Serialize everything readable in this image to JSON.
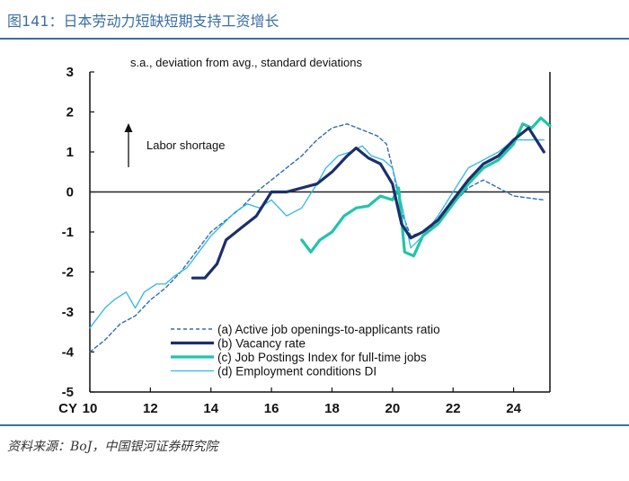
{
  "page": {
    "title": "图141：日本劳动力短缺短期支持工资增长",
    "source": "资料来源：BoJ，中国银河证券研究院"
  },
  "chart_data": {
    "type": "line",
    "subtitle": "s.a., deviation from avg., standard deviations",
    "annotation": "Labor shortage",
    "x_prefix": "CY",
    "xlim": [
      2010,
      2025.2
    ],
    "ylim": [
      -5,
      3
    ],
    "x_ticks": [
      10,
      12,
      14,
      16,
      18,
      20,
      22,
      24
    ],
    "y_ticks": [
      3,
      2,
      1,
      0,
      -1,
      -2,
      -3,
      -4,
      -5
    ],
    "zero_line": 0,
    "series": [
      {
        "name": "(a) Active job openings-to-applicants ratio",
        "style": "dashed",
        "color": "#2e6db4",
        "x": [
          2010.0,
          2010.5,
          2011.0,
          2011.5,
          2012.0,
          2012.5,
          2013.0,
          2013.5,
          2014.0,
          2014.5,
          2015.0,
          2015.5,
          2016.0,
          2016.5,
          2017.0,
          2017.5,
          2018.0,
          2018.5,
          2019.0,
          2019.5,
          2019.8,
          2020.0,
          2020.3,
          2020.6,
          2021.0,
          2021.5,
          2022.0,
          2022.5,
          2023.0,
          2023.5,
          2024.0,
          2024.5,
          2025.0
        ],
        "y": [
          -4.0,
          -3.7,
          -3.3,
          -3.1,
          -2.7,
          -2.4,
          -2.0,
          -1.5,
          -1.0,
          -0.7,
          -0.4,
          0.0,
          0.3,
          0.6,
          0.9,
          1.3,
          1.6,
          1.7,
          1.55,
          1.4,
          1.2,
          0.6,
          -0.5,
          -1.1,
          -1.0,
          -0.8,
          -0.3,
          0.1,
          0.3,
          0.1,
          -0.1,
          -0.15,
          -0.2
        ]
      },
      {
        "name": "(b) Vacancy rate",
        "style": "thick",
        "color": "#1c2f6b",
        "x": [
          2013.4,
          2013.8,
          2014.2,
          2014.5,
          2015.0,
          2015.5,
          2016.0,
          2016.5,
          2017.0,
          2017.5,
          2018.0,
          2018.5,
          2018.8,
          2019.2,
          2019.6,
          2020.0,
          2020.3,
          2020.6,
          2021.0,
          2021.5,
          2022.0,
          2022.5,
          2023.0,
          2023.5,
          2024.0,
          2024.5,
          2025.0
        ],
        "y": [
          -2.15,
          -2.15,
          -1.8,
          -1.2,
          -0.9,
          -0.6,
          0.0,
          0.0,
          0.1,
          0.2,
          0.5,
          0.9,
          1.1,
          0.85,
          0.7,
          0.2,
          -0.8,
          -1.15,
          -1.0,
          -0.7,
          -0.2,
          0.3,
          0.7,
          0.9,
          1.3,
          1.6,
          1.0
        ]
      },
      {
        "name": "(c) Job Postings Index for full-time jobs",
        "style": "thick",
        "color": "#20c5a8",
        "x": [
          2017.0,
          2017.3,
          2017.6,
          2018.0,
          2018.4,
          2018.8,
          2019.2,
          2019.6,
          2020.0,
          2020.2,
          2020.4,
          2020.7,
          2021.0,
          2021.5,
          2022.0,
          2022.5,
          2023.0,
          2023.5,
          2024.0,
          2024.3,
          2024.6,
          2024.9,
          2025.2
        ],
        "y": [
          -1.2,
          -1.5,
          -1.2,
          -1.0,
          -0.6,
          -0.4,
          -0.35,
          -0.1,
          -0.2,
          0.1,
          -1.5,
          -1.6,
          -1.1,
          -0.8,
          -0.3,
          0.2,
          0.6,
          0.8,
          1.2,
          1.7,
          1.6,
          1.85,
          1.65
        ]
      },
      {
        "name": "(d) Employment conditions DI",
        "style": "thin",
        "color": "#2fb6ea",
        "x": [
          2010.0,
          2010.5,
          2010.8,
          2011.2,
          2011.5,
          2011.8,
          2012.2,
          2012.5,
          2012.8,
          2013.2,
          2013.6,
          2014.0,
          2014.4,
          2014.8,
          2015.2,
          2015.6,
          2016.0,
          2016.5,
          2017.0,
          2017.5,
          2017.8,
          2018.2,
          2018.6,
          2019.0,
          2019.3,
          2019.7,
          2020.0,
          2020.3,
          2020.6,
          2021.0,
          2021.5,
          2022.0,
          2022.5,
          2023.0,
          2023.5,
          2024.0,
          2024.5,
          2025.0
        ],
        "y": [
          -3.4,
          -2.9,
          -2.7,
          -2.5,
          -2.9,
          -2.5,
          -2.3,
          -2.3,
          -2.1,
          -1.9,
          -1.5,
          -1.1,
          -0.8,
          -0.5,
          -0.3,
          -0.4,
          -0.2,
          -0.6,
          -0.4,
          0.2,
          0.6,
          0.9,
          1.0,
          1.15,
          0.9,
          0.8,
          0.6,
          -0.3,
          -1.4,
          -1.1,
          -0.6,
          0.0,
          0.6,
          0.8,
          1.0,
          1.3,
          1.3,
          1.3
        ]
      }
    ]
  }
}
